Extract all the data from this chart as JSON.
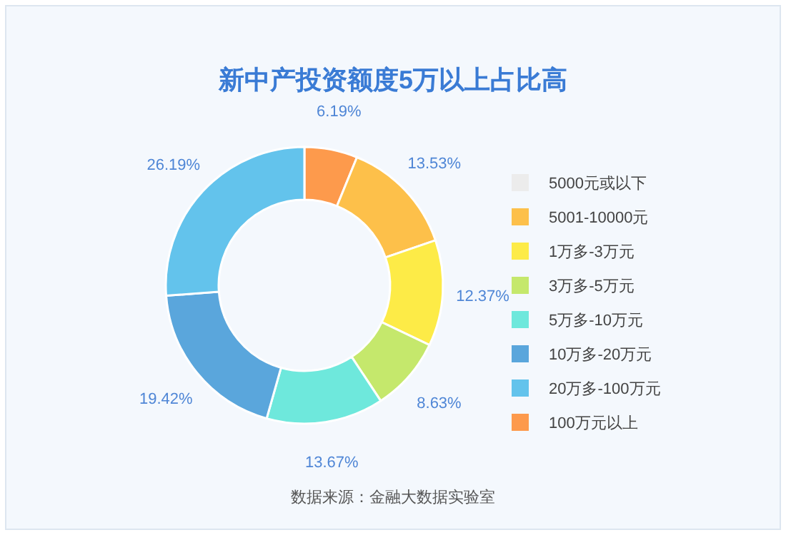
{
  "chart_data": {
    "type": "donut",
    "title": "新中产投资额度5万以上占比高",
    "categories": [
      "5000元或以下",
      "5001-10000元",
      "1万多-3万元",
      "3万多-5万元",
      "5万多-10万元",
      "10万多-20万元",
      "20万多-100万元",
      "100万元以上"
    ],
    "values": [
      0,
      13.53,
      12.37,
      8.63,
      13.67,
      19.42,
      26.19,
      6.19
    ],
    "colors": [
      "#ececec",
      "#fdc04a",
      "#fdeb47",
      "#c5e86c",
      "#6ee8dc",
      "#5aa6dc",
      "#63c3ec",
      "#fd9a4c"
    ],
    "value_labels": [
      null,
      "13.53%",
      "12.37%",
      "8.63%",
      "13.67%",
      "19.42%",
      "26.19%",
      "6.19%"
    ],
    "legend": "right",
    "annotations": [
      "数据来源：金融大数据实验室"
    ]
  }
}
